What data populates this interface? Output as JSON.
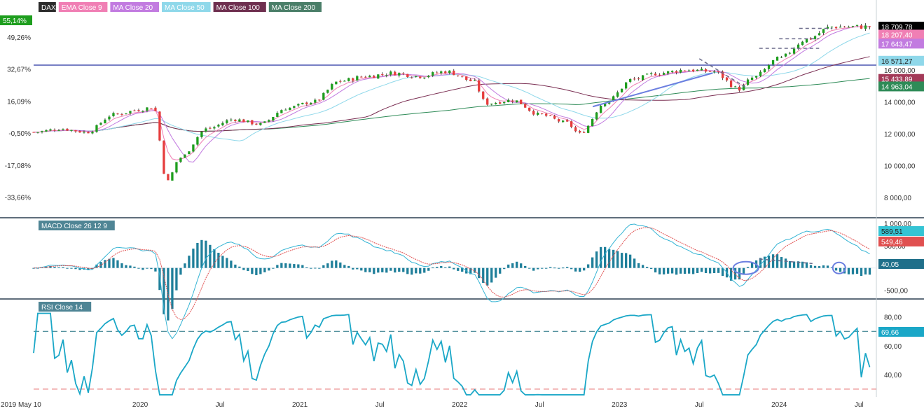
{
  "colors": {
    "up": "#1e9e1e",
    "down": "#e63c3c",
    "ema9": "#f07fb4",
    "ma20": "#c27be0",
    "ma50": "#8fd8ea",
    "ma100": "#7a2e52",
    "ma200": "#2e8b57",
    "hline": "#4a55b0",
    "trend": "#6b7fe0",
    "dashed": "#6a6a8a",
    "macd": "#35b4d4",
    "signal": "#e05050",
    "hist": "#1f7f9a",
    "rsi": "#1aa7c7",
    "rsi_upper": "#1f6f7f",
    "rsi_lower": "#e05050",
    "panel_border": "#2c3e50",
    "grid": "#e8eef2",
    "axis_text": "#333333"
  },
  "legend": [
    {
      "label": "DAX",
      "bg": "#2b2b2b"
    },
    {
      "label": "EMA Close 9",
      "bg": "#f07fb4"
    },
    {
      "label": "MA Close 20",
      "bg": "#c27be0"
    },
    {
      "label": "MA Close 50",
      "bg": "#8fd8ea"
    },
    {
      "label": "MA Close 100",
      "bg": "#6e2f4f"
    },
    {
      "label": "MA Close 200",
      "bg": "#4a7e68"
    }
  ],
  "panels": {
    "macd_label": "MACD Close 26 12 9",
    "rsi_label": "RSI Close 14"
  },
  "chart_data": [
    {
      "type": "line",
      "title": "DAX",
      "x_ticks": [
        "2019 May 10",
        "2020",
        "Jul",
        "2021",
        "Jul",
        "2022",
        "Jul",
        "2023",
        "Jul",
        "2024",
        "Jul"
      ],
      "y_ticks_right": [
        "8 000,00",
        "10 000,00",
        "12 000,00",
        "14 000,00",
        "16 000,00"
      ],
      "y_ticks_left": [
        "-33,66%",
        "-17,08%",
        "-0,50%",
        "16,09%",
        "32,67%",
        "49,26%"
      ],
      "ylim": [
        7000,
        19500
      ],
      "series": [
        {
          "name": "DAX",
          "x": [
            "2019-05",
            "2019-07",
            "2019-09",
            "2019-11",
            "2020-01",
            "2020-02",
            "2020-03",
            "2020-04",
            "2020-06",
            "2020-08",
            "2020-10",
            "2020-12",
            "2021-02",
            "2021-04",
            "2021-06",
            "2021-08",
            "2021-10",
            "2021-12",
            "2022-02",
            "2022-03",
            "2022-05",
            "2022-07",
            "2022-09",
            "2022-10",
            "2022-12",
            "2023-02",
            "2023-04",
            "2023-06",
            "2023-08",
            "2023-10",
            "2023-11",
            "2024-01",
            "2024-03",
            "2024-05"
          ],
          "values": [
            12100,
            12300,
            12100,
            13200,
            13500,
            13700,
            9000,
            10500,
            12300,
            12900,
            12600,
            13600,
            14000,
            15300,
            15600,
            15800,
            15600,
            15900,
            15300,
            13900,
            14100,
            13200,
            12700,
            12000,
            14000,
            15400,
            15800,
            16000,
            15900,
            14800,
            15500,
            16700,
            17900,
            18700
          ]
        },
        {
          "name": "EMA Close 9",
          "current": "18 207,40"
        },
        {
          "name": "MA Close 20",
          "current": "17 643,47"
        },
        {
          "name": "MA Close 50",
          "current": "16 571,27"
        },
        {
          "name": "MA Close 100",
          "current": "15 433,89"
        },
        {
          "name": "MA Close 200",
          "current": "14 963,04"
        }
      ],
      "current_labels": [
        "18 709,78",
        "55,14%"
      ],
      "hline": 16300
    },
    {
      "type": "bar",
      "title": "MACD Close 26 12 9",
      "y_ticks_right": [
        "-500,00",
        "500,00",
        "1 000,00"
      ],
      "current_labels": [
        "589,51",
        "549,46",
        "40,05"
      ],
      "ylim": [
        -650,
        1050
      ]
    },
    {
      "type": "line",
      "title": "RSI Close 14",
      "y_ticks_right": [
        "40,00",
        "60,00",
        "80,00"
      ],
      "ylim": [
        25,
        90
      ],
      "levels": [
        70,
        30
      ],
      "current_labels": [
        "69,66"
      ]
    }
  ]
}
